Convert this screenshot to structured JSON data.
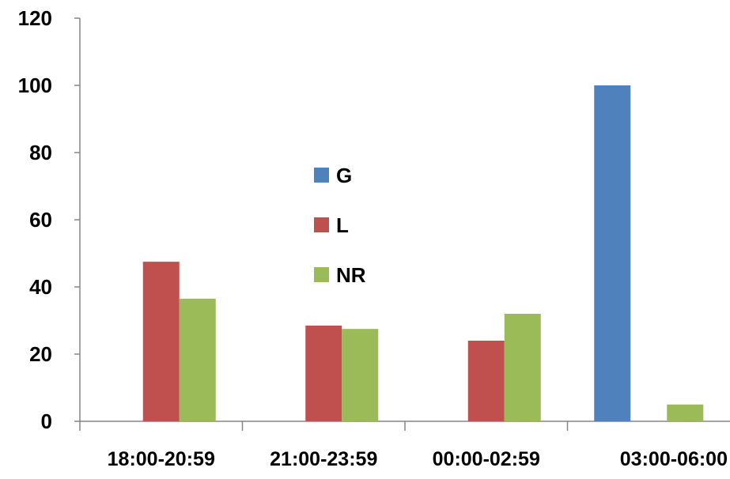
{
  "chart_data": {
    "type": "bar",
    "categories": [
      "18:00-20:59",
      "21:00-23:59",
      "00:00-02:59",
      "03:00-06:00"
    ],
    "series": [
      {
        "name": "G",
        "color": "#4F81BD",
        "values": [
          0,
          0,
          0,
          100
        ]
      },
      {
        "name": "L",
        "color": "#C0504D",
        "values": [
          47.5,
          28.5,
          24,
          0
        ]
      },
      {
        "name": "NR",
        "color": "#9BBB59",
        "values": [
          36.5,
          27.5,
          32,
          5
        ]
      }
    ],
    "ylim": [
      0,
      120
    ],
    "yticks": [
      "0",
      "20",
      "40",
      "60",
      "80",
      "100",
      "120"
    ],
    "grid": false,
    "legend_position": "center-left"
  }
}
